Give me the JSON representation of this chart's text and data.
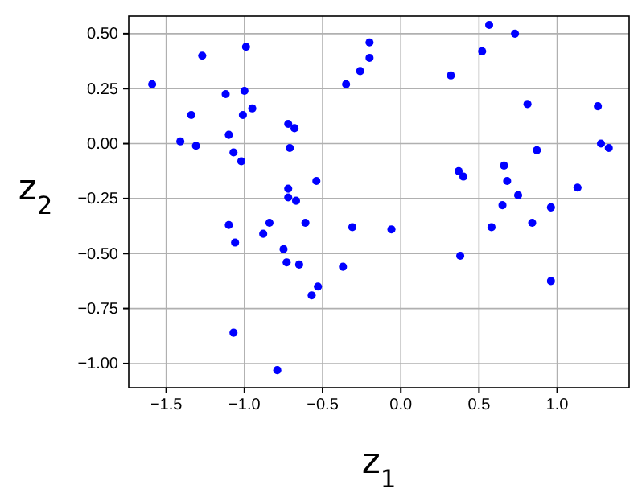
{
  "chart_data": {
    "type": "scatter",
    "xlabel": "z$_{1}$",
    "ylabel": "z$_{2}$",
    "xlim": [
      -1.74,
      1.46
    ],
    "ylim": [
      -1.11,
      0.58
    ],
    "xticks": [
      {
        "value": -1.5,
        "label": "−1.5"
      },
      {
        "value": -1,
        "label": "−1.0"
      },
      {
        "value": -0.5,
        "label": "−0.5"
      },
      {
        "value": 0,
        "label": "0.0"
      },
      {
        "value": 0.5,
        "label": "0.5"
      },
      {
        "value": 1,
        "label": "1.0"
      }
    ],
    "yticks": [
      {
        "value": -1,
        "label": "−1.00"
      },
      {
        "value": -0.75,
        "label": "−0.75"
      },
      {
        "value": -0.5,
        "label": "−0.50"
      },
      {
        "value": -0.25,
        "label": "−0.25"
      },
      {
        "value": 0,
        "label": "0.00"
      },
      {
        "value": 0.25,
        "label": "0.25"
      },
      {
        "value": 0.5,
        "label": "0.50"
      }
    ],
    "grid": true,
    "marker": "circle",
    "series": [
      {
        "color": "#0000ff",
        "x": [
          -1.59,
          -1.27,
          -0.99,
          -1.12,
          -1.0,
          -0.95,
          -1.01,
          -1.34,
          -1.41,
          -1.31,
          -1.1,
          -1.07,
          -1.02,
          -0.72,
          -0.68,
          -0.71,
          -0.54,
          -0.72,
          -0.35,
          -0.26,
          -0.2,
          -0.2,
          0.565,
          0.73,
          0.52,
          0.32,
          0.81,
          1.26,
          1.28,
          1.33,
          0.87,
          0.37,
          0.4,
          0.66,
          0.68,
          0.75,
          1.13,
          0.65,
          0.96,
          0.84,
          0.58,
          -0.06,
          0.38,
          0.96,
          -0.72,
          -0.67,
          -1.1,
          -0.84,
          -0.88,
          -0.61,
          -0.31,
          -1.06,
          -0.75,
          -0.73,
          -0.65,
          -0.37,
          -0.53,
          -0.57,
          -1.07,
          -0.79
        ],
        "values": [
          0.27,
          0.4,
          0.44,
          0.225,
          0.24,
          0.16,
          0.13,
          0.13,
          0.01,
          -0.01,
          0.04,
          -0.04,
          -0.08,
          0.09,
          0.07,
          -0.02,
          -0.17,
          -0.205,
          0.27,
          0.33,
          0.46,
          0.39,
          0.54,
          0.5,
          0.42,
          0.31,
          0.18,
          0.17,
          0.0,
          -0.02,
          -0.03,
          -0.125,
          -0.15,
          -0.1,
          -0.17,
          -0.235,
          -0.2,
          -0.28,
          -0.29,
          -0.36,
          -0.38,
          -0.39,
          -0.51,
          -0.625,
          -0.245,
          -0.26,
          -0.37,
          -0.36,
          -0.41,
          -0.36,
          -0.38,
          -0.45,
          -0.48,
          -0.54,
          -0.55,
          -0.56,
          -0.65,
          -0.69,
          -0.86,
          -1.03
        ]
      }
    ]
  }
}
